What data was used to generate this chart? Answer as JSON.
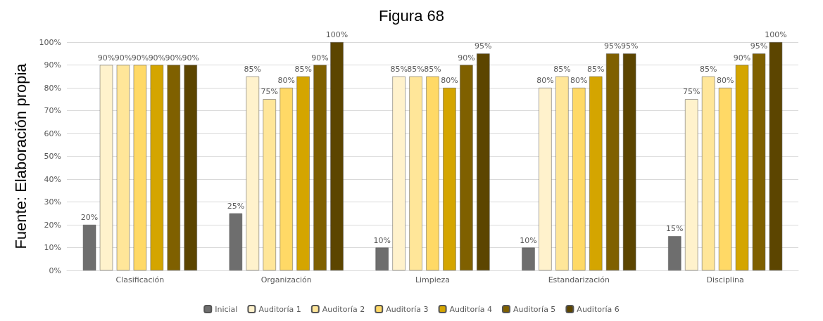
{
  "chart_data": {
    "type": "bar",
    "title": "Figura 68",
    "ylabel": "Fuente: Elaboración propia",
    "categories": [
      "Clasificación",
      "Organización",
      "Limpieza",
      "Estandarización",
      "Disciplina"
    ],
    "series": [
      {
        "name": "Inicial",
        "color": "#6e6e6e",
        "values": [
          20,
          25,
          10,
          10,
          15
        ],
        "value_labels": [
          "20%",
          "25%",
          "10%",
          "10%",
          "15%"
        ]
      },
      {
        "name": "Auditoría 1",
        "color": "#fff2cc",
        "values": [
          90,
          85,
          85,
          80,
          75
        ],
        "value_labels": [
          "90%",
          "85%",
          "85%",
          "80%",
          "75%"
        ]
      },
      {
        "name": "Auditoría 2",
        "color": "#ffe699",
        "values": [
          90,
          75,
          85,
          85,
          85
        ],
        "value_labels": [
          "90%",
          "75%",
          "85%",
          "85%",
          "85%"
        ]
      },
      {
        "name": "Auditoría 3",
        "color": "#ffd966",
        "values": [
          90,
          80,
          85,
          80,
          80
        ],
        "value_labels": [
          "90%",
          "80%",
          "85%",
          "80%",
          "80%"
        ]
      },
      {
        "name": "Auditoría 4",
        "color": "#d4a500",
        "values": [
          90,
          85,
          80,
          85,
          90
        ],
        "value_labels": [
          "90%",
          "85%",
          "80%",
          "85%",
          "90%"
        ]
      },
      {
        "name": "Auditoría 5",
        "color": "#7f6000",
        "values": [
          90,
          90,
          90,
          95,
          95
        ],
        "value_labels": [
          "90%",
          "90%",
          "90%",
          "95%",
          "95%"
        ]
      },
      {
        "name": "Auditoría 6",
        "color": "#5c4500",
        "values": [
          90,
          100,
          95,
          95,
          100
        ],
        "value_labels": [
          "90%",
          "100%",
          "95%",
          "95%",
          "100%"
        ]
      }
    ],
    "ylim": [
      0,
      100
    ],
    "yticks": [
      {
        "value": 0,
        "label": "0%"
      },
      {
        "value": 10,
        "label": "10%"
      },
      {
        "value": 20,
        "label": "20%"
      },
      {
        "value": 30,
        "label": "30%"
      },
      {
        "value": 40,
        "label": "40%"
      },
      {
        "value": 50,
        "label": "50%"
      },
      {
        "value": 60,
        "label": "60%"
      },
      {
        "value": 70,
        "label": "70%"
      },
      {
        "value": 80,
        "label": "80%"
      },
      {
        "value": 90,
        "label": "90%"
      },
      {
        "value": 100,
        "label": "100%"
      }
    ],
    "grid": "y",
    "legend": "bottom"
  }
}
